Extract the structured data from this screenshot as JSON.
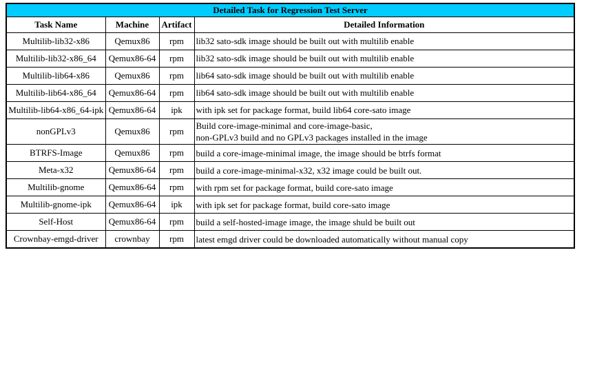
{
  "colors": {
    "title_bg": "#00CCFF",
    "border": "#000000",
    "text": "#000000"
  },
  "table": {
    "title": "Detailed Task for Regression Test Server",
    "headers": [
      "Task Name",
      "Machine",
      "Artifact",
      "Detailed Information"
    ],
    "rows": [
      {
        "task": "Multilib-lib32-x86",
        "machine": "Qemux86",
        "artifact": "rpm",
        "info": "lib32 sato-sdk image should be built out with multilib enable"
      },
      {
        "task": "Multilib-lib32-x86_64",
        "machine": "Qemux86-64",
        "artifact": "rpm",
        "info": "lib32 sato-sdk image should be built out with multilib enable"
      },
      {
        "task": "Multilib-lib64-x86",
        "machine": "Qemux86",
        "artifact": "rpm",
        "info": "lib64 sato-sdk image should be built out with multilib enable"
      },
      {
        "task": "Multilib-lib64-x86_64",
        "machine": "Qemux86-64",
        "artifact": "rpm",
        "info": "lib64 sato-sdk image should be built out with multilib enable"
      },
      {
        "task": "Multilib-lib64-x86_64-ipk",
        "machine": "Qemux86-64",
        "artifact": "ipk",
        "info": "with ipk set for package format, build lib64 core-sato image"
      },
      {
        "task": "nonGPLv3",
        "machine": "Qemux86",
        "artifact": "rpm",
        "info": "Build core-image-minimal and core-image-basic,\nnon-GPLv3 build and no GPLv3 packages installed in the image"
      },
      {
        "task": "BTRFS-Image",
        "machine": "Qemux86",
        "artifact": "rpm",
        "info": "build a core-image-minimal image, the image should be btrfs format"
      },
      {
        "task": "Meta-x32",
        "machine": "Qemux86-64",
        "artifact": "rpm",
        "info": "build a core-image-minimal-x32, x32 image could be built out."
      },
      {
        "task": "Multilib-gnome",
        "machine": "Qemux86-64",
        "artifact": "rpm",
        "info": "with rpm set for package format, build core-sato image"
      },
      {
        "task": "Multilib-gnome-ipk",
        "machine": "Qemux86-64",
        "artifact": "ipk",
        "info": "with ipk set for package format, build core-sato image"
      },
      {
        "task": "Self-Host",
        "machine": "Qemux86-64",
        "artifact": "rpm",
        "info": "build a self-hosted-image image, the image shuld be built out"
      },
      {
        "task": "Crownbay-emgd-driver",
        "machine": "crownbay",
        "artifact": "rpm",
        "info": "latest emgd driver could be downloaded automatically without manual copy"
      }
    ]
  }
}
